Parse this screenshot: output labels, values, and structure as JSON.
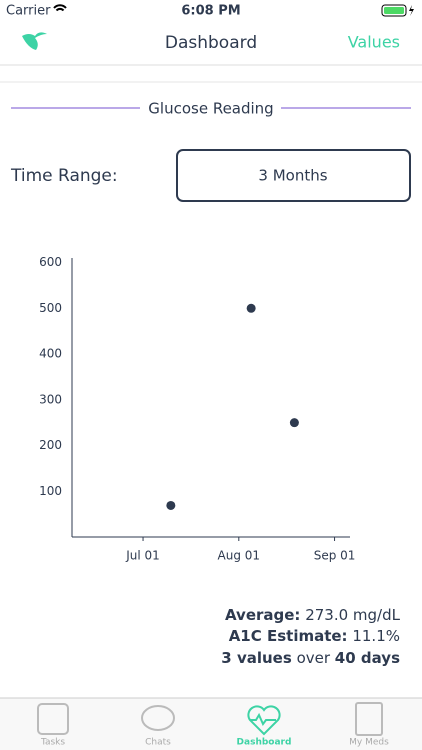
{
  "status_bar": {
    "carrier": "Carrier",
    "time": "6:08 PM"
  },
  "nav": {
    "title": "Dashboard",
    "right_button": "Values"
  },
  "section": {
    "title": "Glucose Reading"
  },
  "time_range": {
    "label": "Time Range:",
    "value": "3 Months"
  },
  "chart_data": {
    "type": "scatter",
    "color": "#2e3a4f",
    "x": [
      9,
      35,
      49
    ],
    "values": [
      69,
      500,
      250
    ],
    "xlim": [
      -23,
      67
    ],
    "xticks": [
      {
        "value": 0,
        "label": "Jul 01"
      },
      {
        "value": 31,
        "label": "Aug 01"
      },
      {
        "value": 62,
        "label": "Sep 01"
      }
    ],
    "ylim": [
      0,
      610
    ],
    "yticks": [
      100,
      200,
      300,
      400,
      500,
      600
    ]
  },
  "stats": {
    "average_label": "Average:",
    "average_value": "273.0 mg/dL",
    "a1c_label": "A1C Estimate:",
    "a1c_value": "11.1%",
    "count": "3 values",
    "over": "over",
    "span": "40 days"
  },
  "tabs": [
    "Tasks",
    "Chats",
    "Dashboard",
    "My Meds"
  ]
}
